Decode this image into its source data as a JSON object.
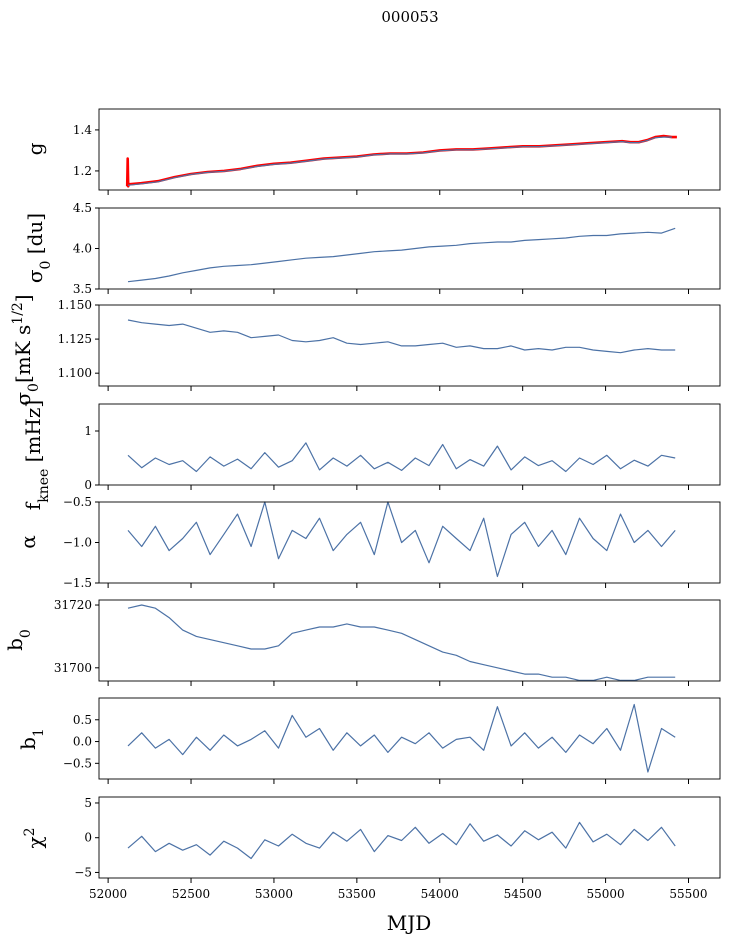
{
  "chart_data": {
    "type": "line",
    "title": "000053",
    "xlabel": "MJD",
    "xlim": [
      51945,
      55690
    ],
    "xticks": [
      52000,
      52500,
      53000,
      53500,
      54000,
      54500,
      55000,
      55500
    ],
    "line_color": "#4c72a6",
    "fit_color": "#ff0000",
    "panels": [
      {
        "label": [
          {
            "t": "g"
          }
        ],
        "ylim": [
          1.107,
          1.502
        ],
        "yticks": [
          1.2,
          1.4
        ],
        "ytick_labels": [
          "1.2",
          "1.4"
        ],
        "series": [
          {
            "name": "g_fit",
            "color": "red",
            "width": 2.6,
            "x": [
              52115,
              52118,
              52121,
              52124,
              52200,
              52300,
              52400,
              52500,
              52600,
              52700,
              52800,
              52900,
              53000,
              53100,
              53200,
              53300,
              53400,
              53500,
              53600,
              53700,
              53800,
              53900,
              54000,
              54100,
              54200,
              54300,
              54400,
              54500,
              54600,
              54700,
              54800,
              54900,
              55000,
              55100,
              55150,
              55200,
              55250,
              55300,
              55350,
              55400,
              55430
            ],
            "values": [
              1.125,
              1.26,
              1.125,
              1.135,
              1.14,
              1.15,
              1.17,
              1.185,
              1.195,
              1.2,
              1.21,
              1.225,
              1.235,
              1.24,
              1.25,
              1.26,
              1.265,
              1.27,
              1.28,
              1.285,
              1.285,
              1.29,
              1.3,
              1.305,
              1.305,
              1.31,
              1.315,
              1.32,
              1.32,
              1.325,
              1.33,
              1.335,
              1.34,
              1.345,
              1.34,
              1.34,
              1.35,
              1.365,
              1.37,
              1.365,
              1.365
            ]
          },
          {
            "name": "g",
            "color": "blue",
            "width": 1.2,
            "x": [
              52120,
              52200,
              52300,
              52400,
              52500,
              52600,
              52700,
              52800,
              52900,
              53000,
              53100,
              53200,
              53300,
              53400,
              53500,
              53600,
              53700,
              53800,
              53900,
              54000,
              54100,
              54200,
              54300,
              54400,
              54500,
              54600,
              54700,
              54800,
              54900,
              55000,
              55100,
              55150,
              55200,
              55250,
              55300,
              55350,
              55400
            ],
            "values": [
              1.13,
              1.137,
              1.147,
              1.167,
              1.183,
              1.193,
              1.198,
              1.208,
              1.222,
              1.232,
              1.238,
              1.248,
              1.258,
              1.263,
              1.268,
              1.278,
              1.283,
              1.283,
              1.288,
              1.298,
              1.303,
              1.303,
              1.308,
              1.313,
              1.318,
              1.318,
              1.323,
              1.328,
              1.333,
              1.338,
              1.343,
              1.338,
              1.338,
              1.348,
              1.362,
              1.365,
              1.365
            ]
          }
        ]
      },
      {
        "label": [
          {
            "t": "σ"
          },
          {
            "t": "0",
            "s": "sub"
          },
          {
            "t": " [du]"
          }
        ],
        "ylim": [
          3.5,
          4.5
        ],
        "yticks": [
          3.5,
          4.0,
          4.5
        ],
        "ytick_labels": [
          "3.5",
          "4.0",
          "4.5"
        ],
        "series": [
          {
            "name": "sigma0_du",
            "color": "blue",
            "width": 1.2,
            "values": [
              3.59,
              3.61,
              3.63,
              3.66,
              3.7,
              3.73,
              3.76,
              3.78,
              3.79,
              3.8,
              3.82,
              3.84,
              3.86,
              3.88,
              3.89,
              3.9,
              3.92,
              3.94,
              3.96,
              3.97,
              3.98,
              4.0,
              4.02,
              4.03,
              4.04,
              4.06,
              4.07,
              4.08,
              4.08,
              4.1,
              4.11,
              4.12,
              4.13,
              4.15,
              4.16,
              4.16,
              4.18,
              4.19,
              4.2,
              4.19,
              4.25
            ]
          }
        ]
      },
      {
        "label": [
          {
            "t": "σ"
          },
          {
            "t": "0",
            "s": "sub"
          },
          {
            "t": "[mK s"
          },
          {
            "t": "1/2",
            "s": "sup"
          },
          {
            "t": "]"
          }
        ],
        "ylim": [
          1.0906,
          1.15
        ],
        "yticks": [
          1.1,
          1.125,
          1.15
        ],
        "ytick_labels": [
          "1.100",
          "1.125",
          "1.150"
        ],
        "series": [
          {
            "name": "sigma0_mK",
            "color": "blue",
            "width": 1.2,
            "values": [
              1.139,
              1.137,
              1.136,
              1.135,
              1.136,
              1.133,
              1.13,
              1.131,
              1.13,
              1.126,
              1.127,
              1.128,
              1.124,
              1.123,
              1.124,
              1.126,
              1.122,
              1.121,
              1.122,
              1.123,
              1.12,
              1.12,
              1.121,
              1.122,
              1.119,
              1.12,
              1.118,
              1.118,
              1.12,
              1.117,
              1.118,
              1.117,
              1.119,
              1.119,
              1.117,
              1.116,
              1.115,
              1.117,
              1.118,
              1.117,
              1.117
            ]
          }
        ]
      },
      {
        "label": [
          {
            "t": "f"
          },
          {
            "t": "knee",
            "s": "sub"
          },
          {
            "t": " [mHz]"
          }
        ],
        "ylim": [
          0,
          1.5
        ],
        "yticks": [
          0,
          1
        ],
        "ytick_labels": [
          "0",
          "1"
        ],
        "series": [
          {
            "name": "fknee",
            "color": "blue",
            "width": 1.2,
            "values": [
              0.55,
              0.32,
              0.5,
              0.38,
              0.45,
              0.25,
              0.52,
              0.35,
              0.48,
              0.3,
              0.6,
              0.33,
              0.45,
              0.78,
              0.28,
              0.5,
              0.35,
              0.55,
              0.3,
              0.42,
              0.27,
              0.5,
              0.36,
              0.75,
              0.3,
              0.47,
              0.35,
              0.72,
              0.28,
              0.52,
              0.36,
              0.45,
              0.25,
              0.5,
              0.38,
              0.55,
              0.3,
              0.46,
              0.35,
              0.55,
              0.5
            ]
          }
        ]
      },
      {
        "label": [
          {
            "t": "α"
          }
        ],
        "ylim": [
          -1.5,
          -0.5
        ],
        "yticks": [
          -1.5,
          -1.0,
          -0.5
        ],
        "ytick_labels": [
          "−1.5",
          "−1.0",
          "−0.5"
        ],
        "series": [
          {
            "name": "alpha",
            "color": "blue",
            "width": 1.2,
            "values": [
              -0.85,
              -1.05,
              -0.8,
              -1.1,
              -0.95,
              -0.75,
              -1.15,
              -0.9,
              -0.65,
              -1.05,
              -0.5,
              -1.2,
              -0.85,
              -0.95,
              -0.7,
              -1.1,
              -0.9,
              -0.75,
              -1.15,
              -0.5,
              -1.0,
              -0.85,
              -1.25,
              -0.8,
              -0.95,
              -1.1,
              -0.7,
              -1.42,
              -0.9,
              -0.75,
              -1.05,
              -0.85,
              -1.15,
              -0.7,
              -0.95,
              -1.1,
              -0.65,
              -1.0,
              -0.85,
              -1.05,
              -0.85
            ]
          }
        ]
      },
      {
        "label": [
          {
            "t": "b"
          },
          {
            "t": "0",
            "s": "sub"
          }
        ],
        "ylim": [
          31695.8,
          31721.6
        ],
        "yticks": [
          31700,
          31720
        ],
        "ytick_labels": [
          "31700",
          "31720"
        ],
        "series": [
          {
            "name": "b0",
            "color": "blue",
            "width": 1.2,
            "values": [
              31719,
              31720,
              31719,
              31716,
              31712,
              31710,
              31709,
              31708,
              31707,
              31706,
              31706,
              31707,
              31711,
              31712,
              31713,
              31713,
              31714,
              31713,
              31713,
              31712,
              31711,
              31709,
              31707,
              31705,
              31704,
              31702,
              31701,
              31700,
              31699,
              31698,
              31698,
              31697,
              31697,
              31696,
              31696,
              31697,
              31696,
              31696,
              31697,
              31697,
              31697
            ]
          }
        ]
      },
      {
        "label": [
          {
            "t": "b"
          },
          {
            "t": "1",
            "s": "sub"
          }
        ],
        "ylim": [
          -0.86,
          1.0
        ],
        "yticks": [
          -0.5,
          0.0,
          0.5
        ],
        "ytick_labels": [
          "−0.5",
          "0.0",
          "0.5"
        ],
        "series": [
          {
            "name": "b1",
            "color": "blue",
            "width": 1.2,
            "values": [
              -0.1,
              0.2,
              -0.15,
              0.05,
              -0.3,
              0.1,
              -0.2,
              0.15,
              -0.1,
              0.05,
              0.25,
              -0.15,
              0.6,
              0.1,
              0.3,
              -0.2,
              0.2,
              -0.1,
              0.15,
              -0.25,
              0.1,
              -0.05,
              0.2,
              -0.15,
              0.05,
              0.1,
              -0.2,
              0.8,
              -0.1,
              0.2,
              -0.15,
              0.1,
              -0.25,
              0.15,
              -0.05,
              0.3,
              -0.2,
              0.85,
              -0.7,
              0.3,
              0.1
            ]
          }
        ]
      },
      {
        "label": [
          {
            "t": "χ"
          },
          {
            "t": "2",
            "s": "sup"
          }
        ],
        "ylim": [
          -5.8,
          5.86
        ],
        "yticks": [
          -5,
          0,
          5
        ],
        "ytick_labels": [
          "−5",
          "0",
          "5"
        ],
        "series": [
          {
            "name": "chi2",
            "color": "blue",
            "width": 1.2,
            "values": [
              -1.5,
              0.2,
              -2.0,
              -0.8,
              -1.8,
              -1.0,
              -2.5,
              -0.5,
              -1.5,
              -3.0,
              -0.3,
              -1.2,
              0.5,
              -0.8,
              -1.5,
              0.8,
              -0.5,
              1.2,
              -2.0,
              0.3,
              -0.4,
              1.5,
              -0.8,
              0.6,
              -1.0,
              2.0,
              -0.5,
              0.4,
              -1.2,
              1.0,
              -0.3,
              0.8,
              -1.5,
              2.2,
              -0.6,
              0.5,
              -1.0,
              1.2,
              -0.4,
              1.5,
              -1.2
            ]
          }
        ]
      }
    ]
  }
}
